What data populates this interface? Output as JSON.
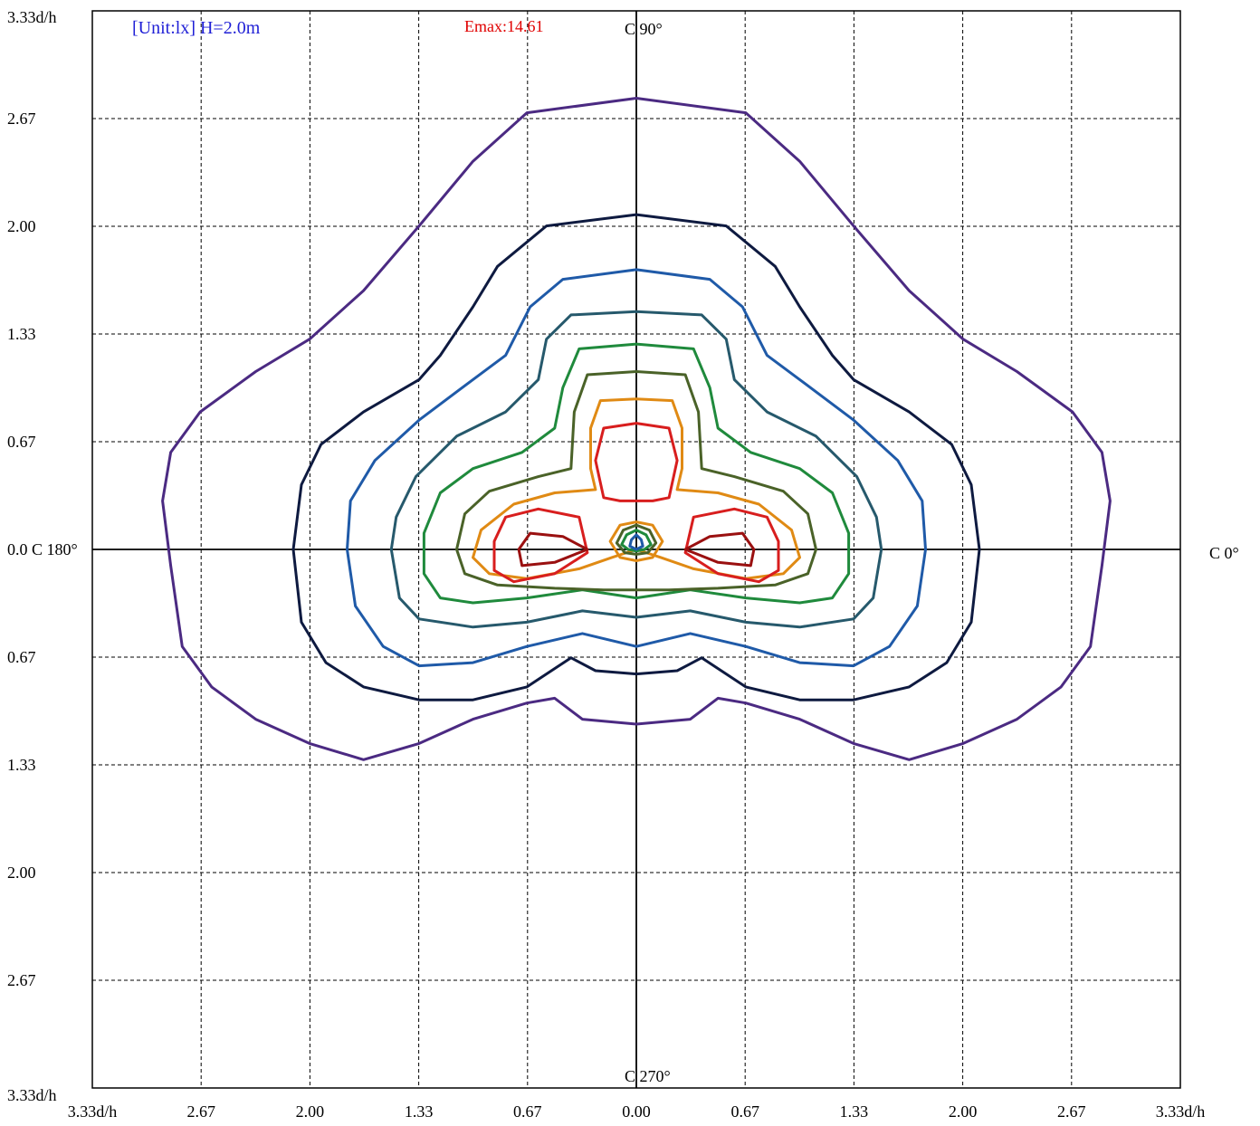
{
  "header": {
    "unit_text": "[Unit:lx]  H=2.0m",
    "emax_text": "Emax:14.61",
    "c90": "C 90°",
    "c270": "C 270°",
    "c0": "C 0°",
    "c180": "0.0 C 180°"
  },
  "colors": {
    "unit": "#1f1fd6",
    "emax": "#e00000",
    "axis": "#000000",
    "grid": "#000000"
  },
  "chart_data": {
    "type": "isolux-contour",
    "title": "",
    "unit": "lx",
    "mounting_height": "H=2.0m",
    "emax": 14.61,
    "axis_unit": "d/h",
    "xlim": [
      -3.33,
      3.33
    ],
    "ylim": [
      -3.33,
      3.33
    ],
    "grid": true,
    "x_tick_labels": [
      "3.33d/h",
      "2.67",
      "2.00",
      "1.33",
      "0.67",
      "0.00",
      "0.67",
      "1.33",
      "2.00",
      "2.67",
      "3.33d/h"
    ],
    "y_tick_labels": [
      "3.33d/h",
      "2.67",
      "2.00",
      "1.33",
      "0.67",
      "0.0 C 180°",
      "0.67",
      "1.33",
      "2.00",
      "2.67",
      "3.33d/h"
    ],
    "contours": [
      {
        "color": "#4b2a82",
        "points": [
          [
            0.0,
            2.79
          ],
          [
            0.67,
            2.7
          ],
          [
            1.0,
            2.4
          ],
          [
            1.33,
            2.0
          ],
          [
            1.67,
            1.6
          ],
          [
            2.0,
            1.3
          ],
          [
            2.33,
            1.1
          ],
          [
            2.67,
            0.85
          ],
          [
            2.85,
            0.6
          ],
          [
            2.9,
            0.3
          ],
          [
            2.85,
            -0.1
          ],
          [
            2.78,
            -0.6
          ],
          [
            2.6,
            -0.85
          ],
          [
            2.33,
            -1.05
          ],
          [
            2.0,
            -1.2
          ],
          [
            1.67,
            -1.3
          ],
          [
            1.33,
            -1.2
          ],
          [
            1.0,
            -1.05
          ],
          [
            0.67,
            -0.95
          ],
          [
            0.5,
            -0.92
          ],
          [
            0.33,
            -1.05
          ],
          [
            0.0,
            -1.08
          ],
          [
            -0.33,
            -1.05
          ],
          [
            -0.5,
            -0.92
          ],
          [
            -0.67,
            -0.95
          ],
          [
            -1.0,
            -1.05
          ],
          [
            -1.33,
            -1.2
          ],
          [
            -1.67,
            -1.3
          ],
          [
            -2.0,
            -1.2
          ],
          [
            -2.33,
            -1.05
          ],
          [
            -2.6,
            -0.85
          ],
          [
            -2.78,
            -0.6
          ],
          [
            -2.85,
            -0.1
          ],
          [
            -2.9,
            0.3
          ],
          [
            -2.85,
            0.6
          ],
          [
            -2.67,
            0.85
          ],
          [
            -2.33,
            1.1
          ],
          [
            -2.0,
            1.3
          ],
          [
            -1.67,
            1.6
          ],
          [
            -1.33,
            2.0
          ],
          [
            -1.0,
            2.4
          ],
          [
            -0.67,
            2.7
          ]
        ]
      },
      {
        "color": "#0e1a40",
        "points": [
          [
            0.0,
            2.07
          ],
          [
            0.55,
            2.0
          ],
          [
            0.85,
            1.75
          ],
          [
            1.0,
            1.5
          ],
          [
            1.2,
            1.2
          ],
          [
            1.33,
            1.05
          ],
          [
            1.67,
            0.85
          ],
          [
            1.93,
            0.65
          ],
          [
            2.05,
            0.4
          ],
          [
            2.1,
            0.0
          ],
          [
            2.05,
            -0.45
          ],
          [
            1.9,
            -0.7
          ],
          [
            1.67,
            -0.85
          ],
          [
            1.33,
            -0.93
          ],
          [
            1.0,
            -0.93
          ],
          [
            0.67,
            -0.85
          ],
          [
            0.4,
            -0.67
          ],
          [
            0.25,
            -0.75
          ],
          [
            0.0,
            -0.77
          ],
          [
            -0.25,
            -0.75
          ],
          [
            -0.4,
            -0.67
          ],
          [
            -0.67,
            -0.85
          ],
          [
            -1.0,
            -0.93
          ],
          [
            -1.33,
            -0.93
          ],
          [
            -1.67,
            -0.85
          ],
          [
            -1.9,
            -0.7
          ],
          [
            -2.05,
            -0.45
          ],
          [
            -2.1,
            0.0
          ],
          [
            -2.05,
            0.4
          ],
          [
            -1.93,
            0.65
          ],
          [
            -1.67,
            0.85
          ],
          [
            -1.33,
            1.05
          ],
          [
            -1.2,
            1.2
          ],
          [
            -1.0,
            1.5
          ],
          [
            -0.85,
            1.75
          ],
          [
            -0.55,
            2.0
          ]
        ]
      },
      {
        "color": "#1f5aa8",
        "points": [
          [
            0.0,
            1.73
          ],
          [
            0.45,
            1.67
          ],
          [
            0.65,
            1.5
          ],
          [
            0.8,
            1.2
          ],
          [
            1.0,
            1.05
          ],
          [
            1.33,
            0.8
          ],
          [
            1.6,
            0.55
          ],
          [
            1.75,
            0.3
          ],
          [
            1.77,
            0.0
          ],
          [
            1.72,
            -0.35
          ],
          [
            1.55,
            -0.6
          ],
          [
            1.33,
            -0.72
          ],
          [
            1.0,
            -0.7
          ],
          [
            0.67,
            -0.6
          ],
          [
            0.33,
            -0.52
          ],
          [
            0.0,
            -0.6
          ],
          [
            -0.33,
            -0.52
          ],
          [
            -0.67,
            -0.6
          ],
          [
            -1.0,
            -0.7
          ],
          [
            -1.33,
            -0.72
          ],
          [
            -1.55,
            -0.6
          ],
          [
            -1.72,
            -0.35
          ],
          [
            -1.77,
            0.0
          ],
          [
            -1.75,
            0.3
          ],
          [
            -1.6,
            0.55
          ],
          [
            -1.33,
            0.8
          ],
          [
            -1.0,
            1.05
          ],
          [
            -0.8,
            1.2
          ],
          [
            -0.65,
            1.5
          ],
          [
            -0.45,
            1.67
          ]
        ]
      },
      {
        "color": "#26596c",
        "points": [
          [
            0.0,
            1.47
          ],
          [
            0.4,
            1.45
          ],
          [
            0.55,
            1.3
          ],
          [
            0.6,
            1.05
          ],
          [
            0.8,
            0.85
          ],
          [
            1.1,
            0.7
          ],
          [
            1.35,
            0.45
          ],
          [
            1.47,
            0.2
          ],
          [
            1.5,
            0.0
          ],
          [
            1.45,
            -0.3
          ],
          [
            1.33,
            -0.43
          ],
          [
            1.0,
            -0.48
          ],
          [
            0.67,
            -0.45
          ],
          [
            0.33,
            -0.38
          ],
          [
            0.0,
            -0.42
          ],
          [
            -0.33,
            -0.38
          ],
          [
            -0.67,
            -0.45
          ],
          [
            -1.0,
            -0.48
          ],
          [
            -1.33,
            -0.43
          ],
          [
            -1.45,
            -0.3
          ],
          [
            -1.5,
            0.0
          ],
          [
            -1.47,
            0.2
          ],
          [
            -1.35,
            0.45
          ],
          [
            -1.1,
            0.7
          ],
          [
            -0.8,
            0.85
          ],
          [
            -0.6,
            1.05
          ],
          [
            -0.55,
            1.3
          ],
          [
            -0.4,
            1.45
          ]
        ]
      },
      {
        "color": "#1f8a3c",
        "points": [
          [
            0.0,
            1.27
          ],
          [
            0.35,
            1.24
          ],
          [
            0.45,
            1.0
          ],
          [
            0.5,
            0.75
          ],
          [
            0.7,
            0.6
          ],
          [
            1.0,
            0.5
          ],
          [
            1.2,
            0.35
          ],
          [
            1.3,
            0.1
          ],
          [
            1.3,
            -0.15
          ],
          [
            1.2,
            -0.3
          ],
          [
            1.0,
            -0.33
          ],
          [
            0.67,
            -0.3
          ],
          [
            0.33,
            -0.25
          ],
          [
            0.0,
            -0.3
          ],
          [
            -0.33,
            -0.25
          ],
          [
            -0.67,
            -0.3
          ],
          [
            -1.0,
            -0.33
          ],
          [
            -1.2,
            -0.3
          ],
          [
            -1.3,
            -0.15
          ],
          [
            -1.3,
            0.1
          ],
          [
            -1.2,
            0.35
          ],
          [
            -1.0,
            0.5
          ],
          [
            -0.7,
            0.6
          ],
          [
            -0.5,
            0.75
          ],
          [
            -0.45,
            1.0
          ],
          [
            -0.35,
            1.24
          ]
        ]
      },
      {
        "color": "#4a6228",
        "points": [
          [
            0.0,
            1.1
          ],
          [
            0.3,
            1.08
          ],
          [
            0.38,
            0.85
          ],
          [
            0.4,
            0.5
          ],
          [
            0.6,
            0.45
          ],
          [
            0.9,
            0.36
          ],
          [
            1.05,
            0.22
          ],
          [
            1.1,
            0.0
          ],
          [
            1.05,
            -0.15
          ],
          [
            0.85,
            -0.22
          ],
          [
            0.5,
            -0.24
          ],
          [
            0.2,
            -0.25
          ],
          [
            0.0,
            -0.25
          ],
          [
            -0.2,
            -0.25
          ],
          [
            -0.5,
            -0.24
          ],
          [
            -0.85,
            -0.22
          ],
          [
            -1.05,
            -0.15
          ],
          [
            -1.1,
            0.0
          ],
          [
            -1.05,
            0.22
          ],
          [
            -0.9,
            0.36
          ],
          [
            -0.6,
            0.45
          ],
          [
            -0.4,
            0.5
          ],
          [
            -0.38,
            0.85
          ],
          [
            -0.3,
            1.08
          ]
        ]
      },
      {
        "color": "#e08a14",
        "points": [
          [
            0.0,
            0.93
          ],
          [
            0.22,
            0.92
          ],
          [
            0.28,
            0.75
          ],
          [
            0.28,
            0.5
          ],
          [
            0.25,
            0.37
          ],
          [
            0.5,
            0.35
          ],
          [
            0.75,
            0.28
          ],
          [
            0.95,
            0.12
          ],
          [
            1.0,
            -0.05
          ],
          [
            0.9,
            -0.15
          ],
          [
            0.67,
            -0.18
          ],
          [
            0.35,
            -0.12
          ],
          [
            0.15,
            -0.05
          ],
          [
            0.0,
            0.0
          ],
          [
            -0.15,
            -0.05
          ],
          [
            -0.35,
            -0.12
          ],
          [
            -0.67,
            -0.18
          ],
          [
            -0.9,
            -0.15
          ],
          [
            -1.0,
            -0.05
          ],
          [
            -0.95,
            0.12
          ],
          [
            -0.75,
            0.28
          ],
          [
            -0.5,
            0.35
          ],
          [
            -0.25,
            0.37
          ],
          [
            -0.28,
            0.5
          ],
          [
            -0.28,
            0.75
          ],
          [
            -0.22,
            0.92
          ]
        ]
      },
      {
        "color": "#d81e1e",
        "points": [
          [
            0.0,
            0.78
          ],
          [
            0.2,
            0.75
          ],
          [
            0.25,
            0.55
          ],
          [
            0.2,
            0.32
          ],
          [
            0.1,
            0.3
          ],
          [
            0.0,
            0.3
          ],
          [
            -0.1,
            0.3
          ],
          [
            -0.2,
            0.32
          ],
          [
            -0.25,
            0.55
          ],
          [
            -0.2,
            0.75
          ]
        ]
      },
      {
        "color": "#d81e1e",
        "points": [
          [
            0.35,
            0.2
          ],
          [
            0.6,
            0.25
          ],
          [
            0.8,
            0.2
          ],
          [
            0.87,
            0.05
          ],
          [
            0.87,
            -0.13
          ],
          [
            0.75,
            -0.2
          ],
          [
            0.5,
            -0.15
          ],
          [
            0.3,
            -0.02
          ]
        ]
      },
      {
        "color": "#d81e1e",
        "points": [
          [
            -0.35,
            0.2
          ],
          [
            -0.6,
            0.25
          ],
          [
            -0.8,
            0.2
          ],
          [
            -0.87,
            0.05
          ],
          [
            -0.87,
            -0.13
          ],
          [
            -0.75,
            -0.2
          ],
          [
            -0.5,
            -0.15
          ],
          [
            -0.3,
            -0.02
          ]
        ]
      },
      {
        "color": "#9a1010",
        "points": [
          [
            0.3,
            0.0
          ],
          [
            0.45,
            0.08
          ],
          [
            0.65,
            0.1
          ],
          [
            0.72,
            0.0
          ],
          [
            0.7,
            -0.1
          ],
          [
            0.5,
            -0.08
          ]
        ]
      },
      {
        "color": "#9a1010",
        "points": [
          [
            -0.3,
            0.0
          ],
          [
            -0.45,
            0.08
          ],
          [
            -0.65,
            0.1
          ],
          [
            -0.72,
            0.0
          ],
          [
            -0.7,
            -0.1
          ],
          [
            -0.5,
            -0.08
          ]
        ]
      },
      {
        "color": "#e08a14",
        "points": [
          [
            0.0,
            0.17
          ],
          [
            0.1,
            0.15
          ],
          [
            0.16,
            0.05
          ],
          [
            0.1,
            -0.05
          ],
          [
            0.0,
            -0.07
          ],
          [
            -0.1,
            -0.05
          ],
          [
            -0.16,
            0.05
          ],
          [
            -0.1,
            0.15
          ]
        ]
      },
      {
        "color": "#4a6228",
        "points": [
          [
            0.0,
            0.15
          ],
          [
            0.08,
            0.12
          ],
          [
            0.12,
            0.04
          ],
          [
            0.07,
            -0.02
          ],
          [
            0.0,
            -0.03
          ],
          [
            -0.07,
            -0.02
          ],
          [
            -0.12,
            0.04
          ],
          [
            -0.08,
            0.12
          ]
        ]
      },
      {
        "color": "#1f8a3c",
        "points": [
          [
            0.0,
            0.12
          ],
          [
            0.06,
            0.09
          ],
          [
            0.09,
            0.03
          ],
          [
            0.05,
            0.0
          ],
          [
            0.0,
            -0.01
          ],
          [
            -0.05,
            0.0
          ],
          [
            -0.09,
            0.03
          ],
          [
            -0.06,
            0.09
          ]
        ]
      },
      {
        "color": "#1f5aa8",
        "points": [
          [
            0.0,
            0.09
          ],
          [
            0.03,
            0.06
          ],
          [
            0.04,
            0.02
          ],
          [
            0.0,
            0.0
          ],
          [
            -0.04,
            0.02
          ],
          [
            -0.03,
            0.06
          ]
        ]
      }
    ]
  }
}
